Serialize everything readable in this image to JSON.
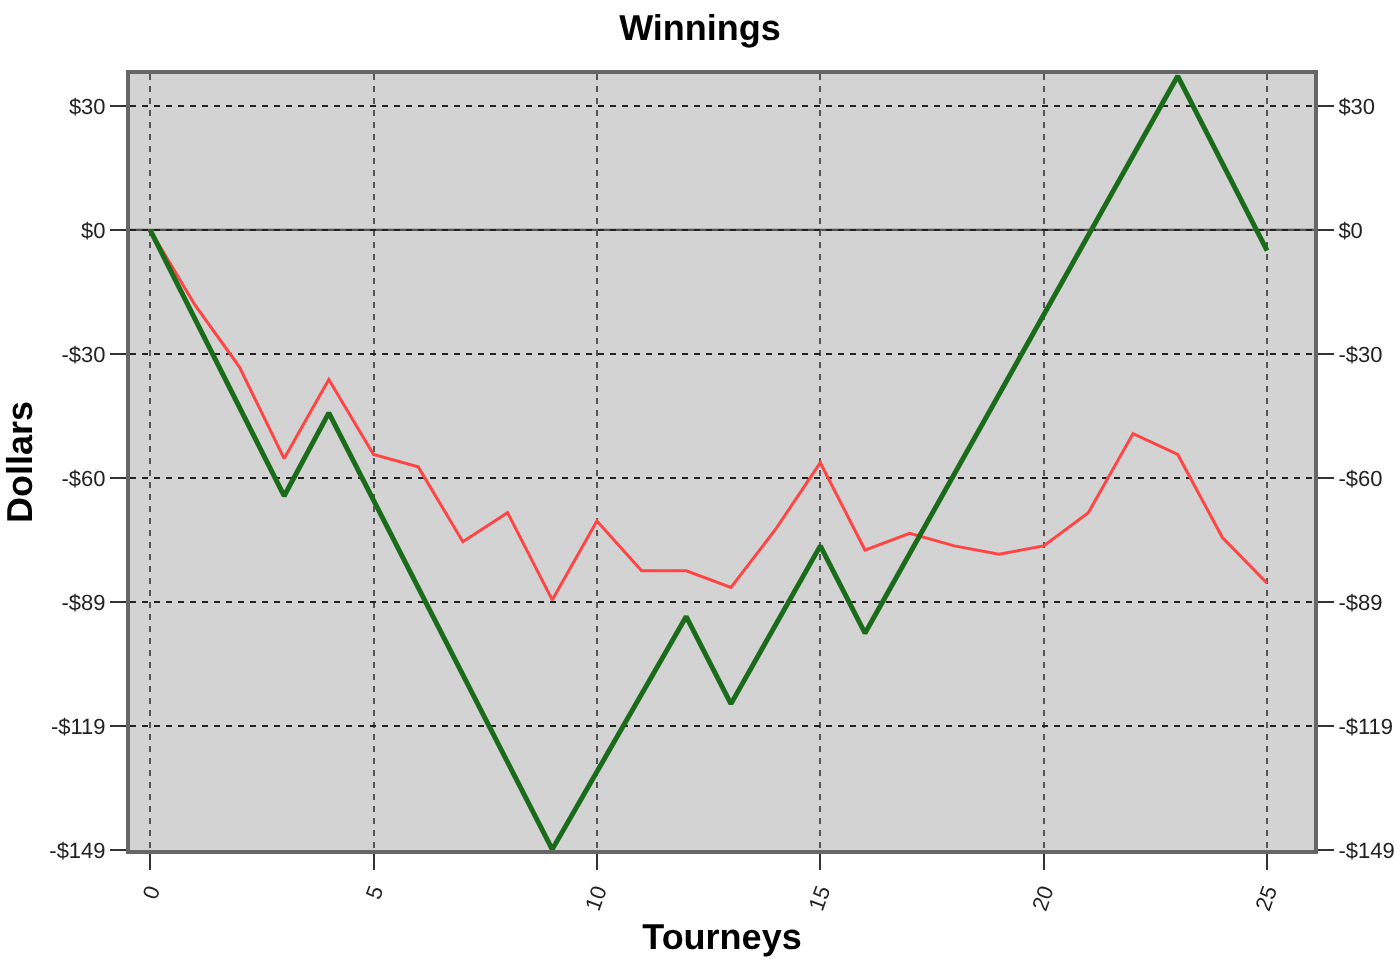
{
  "chart_data": {
    "type": "line",
    "title": "Winnings",
    "xlabel": "Tourneys",
    "ylabel": "Dollars",
    "xlim": [
      -0.45,
      26.05
    ],
    "xticks": [
      0,
      5,
      10,
      15,
      20,
      25
    ],
    "ylim": [
      -149.15,
      37.5
    ],
    "yticks": [
      {
        "value": 29.83,
        "label": "$30"
      },
      {
        "value": 0,
        "label": "$0"
      },
      {
        "value": -29.83,
        "label": "-$30"
      },
      {
        "value": -59.66,
        "label": "-$60"
      },
      {
        "value": -89.49,
        "label": "-$89"
      },
      {
        "value": -119.32,
        "label": "-$119"
      },
      {
        "value": -149.15,
        "label": "-$149"
      }
    ],
    "y2lim": [
      -149.15,
      37.5
    ],
    "y2ticks": [
      {
        "value": 29.83,
        "label": "$30"
      },
      {
        "value": 0,
        "label": "$0"
      },
      {
        "value": -29.83,
        "label": "-$30"
      },
      {
        "value": -59.66,
        "label": "-$60"
      },
      {
        "value": -89.49,
        "label": "-$89"
      },
      {
        "value": -119.32,
        "label": "-$119"
      },
      {
        "value": -149.15,
        "label": "-$149"
      }
    ],
    "grid": true,
    "line_style": "solid",
    "ref_lines": [
      {
        "axis": "y",
        "value": 0,
        "color": "#555555",
        "line_style": "solid"
      }
    ],
    "series": [
      {
        "color": "#ff4444",
        "x": [
          0,
          1,
          2,
          3,
          4,
          5,
          6,
          7,
          8,
          9,
          10,
          11,
          12,
          13,
          14,
          15,
          16,
          17,
          18,
          19,
          20,
          21,
          22,
          23,
          24,
          25
        ],
        "values": [
          0,
          -18,
          -33,
          -55,
          -36,
          -54,
          -57,
          -75,
          -68,
          -89,
          -70,
          -82,
          -82,
          -86,
          -72,
          -56,
          -77,
          -73,
          -76,
          -78,
          -76,
          -68,
          -49,
          -54,
          -74,
          -85
        ]
      },
      {
        "color": "#1a6b1a",
        "x": [
          0,
          3,
          4,
          9,
          12,
          13,
          15,
          16,
          23,
          25
        ],
        "values": [
          0,
          -64,
          -44,
          -149,
          -93,
          -114,
          -76,
          -97,
          37,
          -5
        ]
      }
    ]
  }
}
